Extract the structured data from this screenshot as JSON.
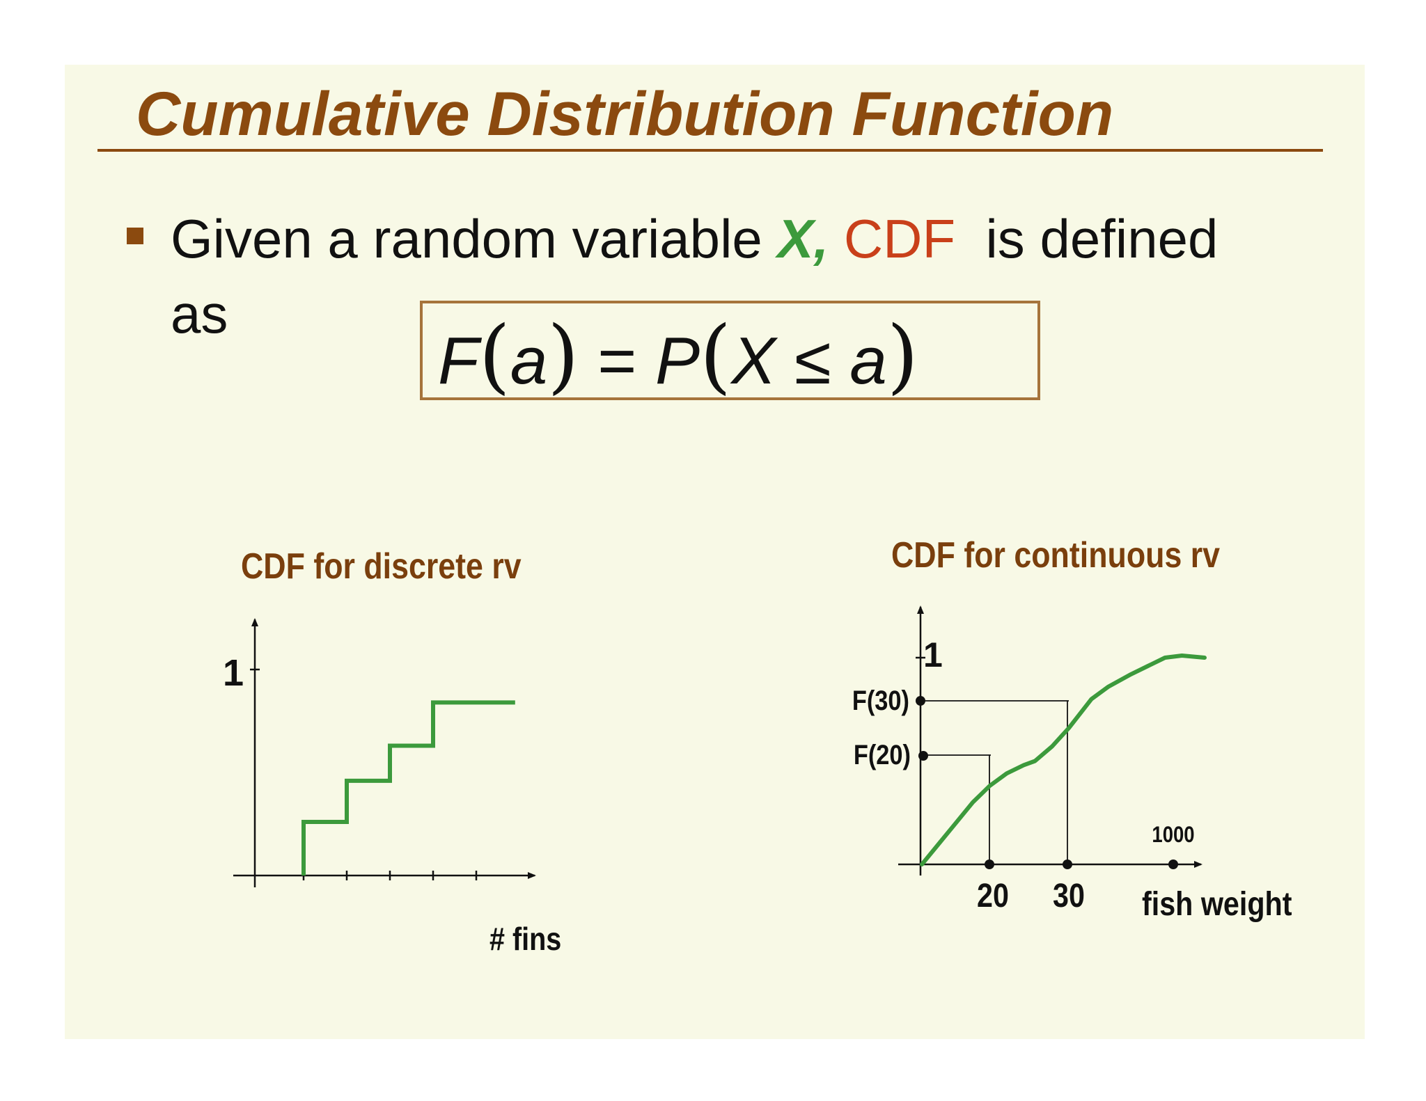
{
  "slide": {
    "title": "Cumulative Distribution Function",
    "bullet": {
      "part1": "Given a random variable ",
      "variable": "X,",
      "space": " ",
      "term": "CDF",
      "part2": "  is defined",
      "line2": "as"
    },
    "formula": {
      "f": "F",
      "lp1": "(",
      "a1": "a",
      "rp1": ")",
      "eq": "=",
      "p": "P",
      "lp2": "(",
      "x": "X",
      "le": "≤",
      "a2": "a",
      "rp2": ")"
    }
  },
  "colors": {
    "title": "#8b4a0f",
    "chart_title": "#7a3f0d",
    "curve": "#3c9a3c",
    "variable_x": "#3c9a3c",
    "cdf_word": "#c9401a",
    "formula_border": "#a6743b",
    "background": "#f8f9e6"
  },
  "chart_data": [
    {
      "type": "line",
      "title": "CDF for discrete rv",
      "xlabel": "# fins",
      "ylabel": "",
      "y_tick_label": "1",
      "x_ticks": [
        1,
        2,
        3,
        4,
        5
      ],
      "ylim": [
        0,
        1
      ],
      "xlim": [
        -0.5,
        6.3
      ],
      "series": [
        {
          "x": [
            1,
            1,
            2,
            2,
            3,
            3,
            4,
            4,
            5.9
          ],
          "y": [
            0,
            0.26,
            0.26,
            0.46,
            0.46,
            0.63,
            0.63,
            0.84,
            0.84
          ]
        }
      ]
    },
    {
      "type": "line",
      "title": "CDF for continuous rv",
      "xlabel": "fish weight",
      "ylabel": "",
      "y_tick_label": "1",
      "x_labels": [
        "20",
        "30"
      ],
      "x_end_label": "1000",
      "y_labels": [
        "F(20)",
        "F(30)"
      ],
      "annotations": [
        {
          "label": "F(20)",
          "x": 20,
          "y": 0.5
        },
        {
          "label": "F(30)",
          "x": 30,
          "y": 0.8
        }
      ],
      "ylim": [
        0,
        1.1
      ],
      "series": [
        {
          "x": [
            0,
            3,
            6,
            9,
            12,
            15,
            18,
            20,
            23,
            26,
            30,
            33,
            37,
            40,
            43,
            46,
            50
          ],
          "y": [
            0,
            0.1,
            0.2,
            0.3,
            0.38,
            0.44,
            0.48,
            0.5,
            0.57,
            0.66,
            0.8,
            0.86,
            0.92,
            0.96,
            1.0,
            1.01,
            1.0
          ]
        }
      ]
    }
  ]
}
